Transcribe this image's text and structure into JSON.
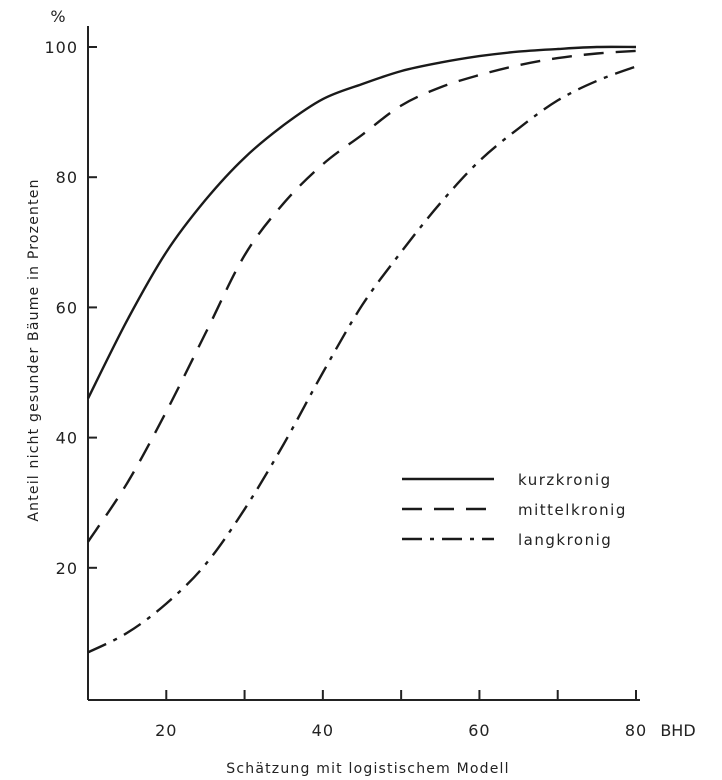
{
  "chart_data": {
    "type": "line",
    "title": "",
    "xlabel": "Schätzung mit logistischem Modell",
    "ylabel": "Anteil nicht gesunder Bäume in Prozenten",
    "x_unit": "BHD",
    "y_unit": "%",
    "xlim": [
      10,
      80
    ],
    "ylim": [
      0,
      100
    ],
    "x_ticks": [
      20,
      30,
      40,
      50,
      60,
      70,
      80
    ],
    "x_tick_labels": [
      "20",
      "",
      "40",
      "",
      "60",
      "",
      "80"
    ],
    "y_ticks": [
      20,
      40,
      60,
      80,
      100
    ],
    "y_tick_labels": [
      "20",
      "40",
      "60",
      "80",
      "100"
    ],
    "grid": false,
    "legend_position": "center-right",
    "series": [
      {
        "name": "kurzkronig",
        "style": "solid",
        "x": [
          10,
          15,
          20,
          25,
          30,
          35,
          40,
          45,
          50,
          55,
          60,
          65,
          70,
          75,
          80
        ],
        "y": [
          46,
          58,
          68.5,
          76.5,
          83,
          88,
          92,
          94.3,
          96.3,
          97.6,
          98.6,
          99.3,
          99.7,
          100,
          100
        ]
      },
      {
        "name": "mittelkronig",
        "style": "dashed",
        "x": [
          10,
          15,
          20,
          25,
          30,
          35,
          40,
          45,
          50,
          55,
          60,
          65,
          70,
          75,
          80
        ],
        "y": [
          24,
          33,
          44,
          56,
          68,
          76,
          82,
          86.5,
          91,
          93.8,
          95.7,
          97.2,
          98.3,
          99,
          99.4
        ]
      },
      {
        "name": "langkronig",
        "style": "dash-dot",
        "x": [
          10,
          15,
          20,
          25,
          30,
          35,
          40,
          45,
          50,
          55,
          60,
          65,
          70,
          75,
          80
        ],
        "y": [
          7,
          10,
          14.5,
          20.5,
          29,
          39,
          50,
          60.3,
          68.5,
          76,
          82.5,
          87.5,
          91.8,
          94.8,
          97
        ]
      }
    ]
  }
}
